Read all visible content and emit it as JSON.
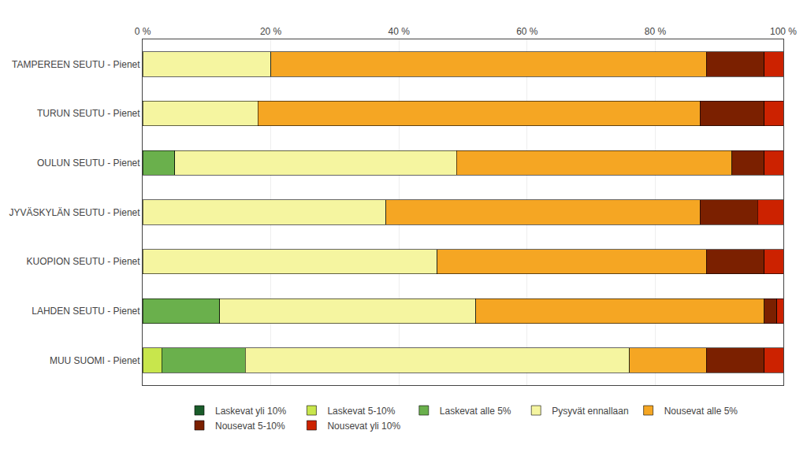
{
  "chart_data": {
    "type": "bar",
    "orientation": "horizontal",
    "stacked": true,
    "categories": [
      "TAMPEREEN SEUTU - Pienet",
      "TURUN SEUTU - Pienet",
      "OULUN SEUTU - Pienet",
      "JYVÄSKYLÄN SEUTU - Pienet",
      "KUOPION SEUTU - Pienet",
      "LAHDEN SEUTU - Pienet",
      "MUU SUOMI - Pienet"
    ],
    "series": [
      {
        "name": "Laskevat yli 10%",
        "color": "#1a5c2a",
        "values": [
          0,
          0,
          0,
          0,
          0,
          0,
          0
        ]
      },
      {
        "name": "Laskevat 5-10%",
        "color": "#c8e64c",
        "values": [
          0,
          0,
          0,
          0,
          0,
          0,
          3
        ]
      },
      {
        "name": "Laskevat alle 5%",
        "color": "#6ab04c",
        "values": [
          0,
          0,
          5,
          0,
          0,
          12,
          13
        ]
      },
      {
        "name": "Pysyvät ennallaan",
        "color": "#f5f5a0",
        "values": [
          20,
          18,
          44,
          38,
          46,
          40,
          60
        ]
      },
      {
        "name": "Nousevat alle 5%",
        "color": "#f5a623",
        "values": [
          68,
          69,
          43,
          49,
          42,
          45,
          12
        ]
      },
      {
        "name": "Nousevat 5-10%",
        "color": "#7b2000",
        "values": [
          9,
          10,
          5,
          9,
          9,
          2,
          9
        ]
      },
      {
        "name": "Nousevat yli 10%",
        "color": "#cc2200",
        "values": [
          3,
          3,
          3,
          4,
          3,
          1,
          3
        ]
      }
    ],
    "xlim": [
      0,
      100
    ],
    "xticks": [
      {
        "value": 0,
        "label": "0 %"
      },
      {
        "value": 20,
        "label": "20 %"
      },
      {
        "value": 40,
        "label": "40 %"
      },
      {
        "value": 60,
        "label": "60 %"
      },
      {
        "value": 80,
        "label": "80 %"
      },
      {
        "value": 100,
        "label": "100 %"
      }
    ],
    "grid": true,
    "legend": "bottom"
  }
}
